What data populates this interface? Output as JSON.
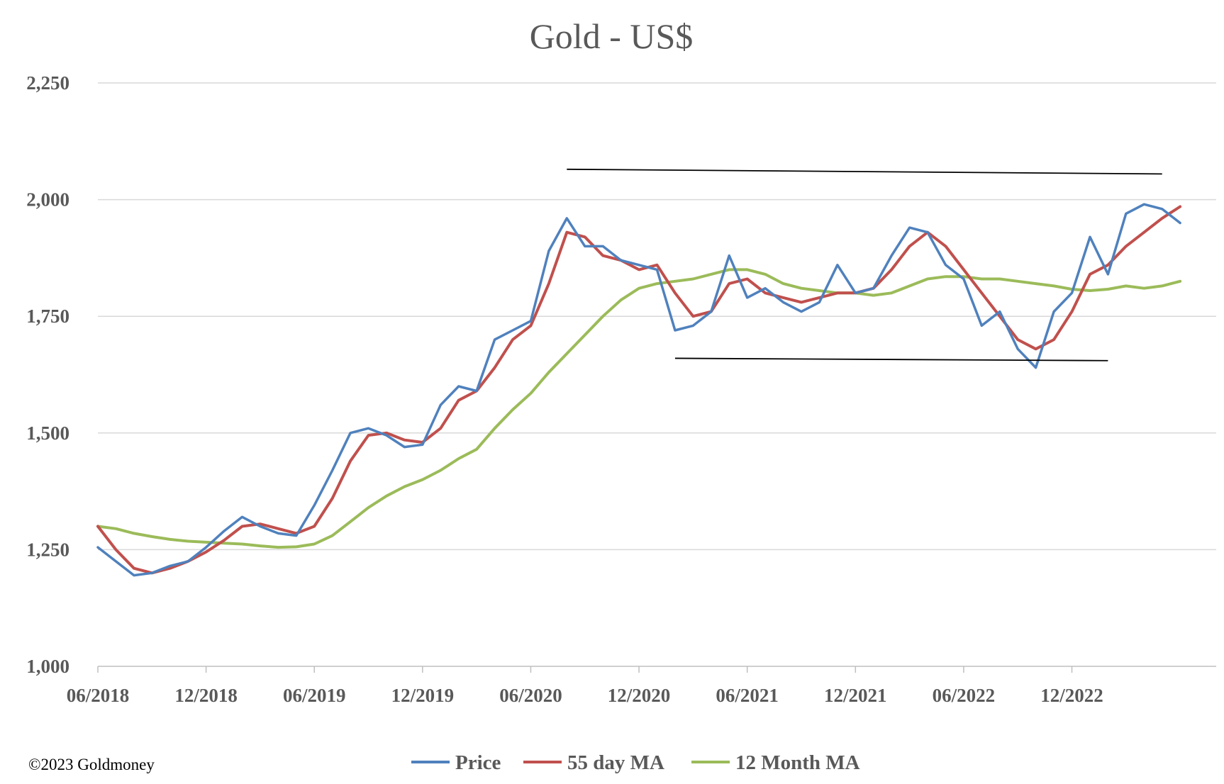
{
  "chart_data": {
    "type": "line",
    "title": "Gold - US$",
    "xlabel": "",
    "ylabel": "",
    "ylim": [
      1000,
      2250
    ],
    "yticks": [
      1000,
      1250,
      1500,
      1750,
      2000,
      2250
    ],
    "ytick_labels": [
      "1,000",
      "1,250",
      "1,500",
      "1,750",
      "2,000",
      "2,250"
    ],
    "xlim": [
      "2018-06",
      "2023-06"
    ],
    "xticks": [
      "2018-06",
      "2018-12",
      "2019-06",
      "2019-12",
      "2020-06",
      "2020-12",
      "2021-06",
      "2021-12",
      "2022-06",
      "2022-12"
    ],
    "xtick_labels": [
      "06/2018",
      "12/2018",
      "06/2019",
      "12/2019",
      "06/2020",
      "12/2020",
      "06/2021",
      "12/2021",
      "06/2022",
      "12/2022"
    ],
    "grid": true,
    "legend": "bottom",
    "series": [
      {
        "name": "Price",
        "color": "#4f81bd",
        "x": [
          "2018-06",
          "2018-07",
          "2018-08",
          "2018-09",
          "2018-10",
          "2018-11",
          "2018-12",
          "2019-01",
          "2019-02",
          "2019-03",
          "2019-04",
          "2019-05",
          "2019-06",
          "2019-07",
          "2019-08",
          "2019-09",
          "2019-10",
          "2019-11",
          "2019-12",
          "2020-01",
          "2020-02",
          "2020-03",
          "2020-04",
          "2020-05",
          "2020-06",
          "2020-07",
          "2020-08",
          "2020-09",
          "2020-10",
          "2020-11",
          "2020-12",
          "2021-01",
          "2021-02",
          "2021-03",
          "2021-04",
          "2021-05",
          "2021-06",
          "2021-07",
          "2021-08",
          "2021-09",
          "2021-10",
          "2021-11",
          "2021-12",
          "2022-01",
          "2022-02",
          "2022-03",
          "2022-04",
          "2022-05",
          "2022-06",
          "2022-07",
          "2022-08",
          "2022-09",
          "2022-10",
          "2022-11",
          "2022-12",
          "2023-01",
          "2023-02",
          "2023-03",
          "2023-04",
          "2023-05",
          "2023-06"
        ],
        "values": [
          1255,
          1225,
          1195,
          1200,
          1215,
          1225,
          1255,
          1290,
          1320,
          1300,
          1285,
          1280,
          1345,
          1420,
          1500,
          1510,
          1495,
          1470,
          1475,
          1560,
          1600,
          1590,
          1700,
          1720,
          1740,
          1890,
          1960,
          1900,
          1900,
          1870,
          1860,
          1850,
          1720,
          1730,
          1760,
          1880,
          1790,
          1810,
          1780,
          1760,
          1780,
          1860,
          1800,
          1810,
          1880,
          1940,
          1930,
          1860,
          1830,
          1730,
          1760,
          1680,
          1640,
          1760,
          1800,
          1920,
          1840,
          1970,
          1990,
          1980,
          1950
        ]
      },
      {
        "name": "55 day MA",
        "color": "#c0504d",
        "x": [
          "2018-06",
          "2018-07",
          "2018-08",
          "2018-09",
          "2018-10",
          "2018-11",
          "2018-12",
          "2019-01",
          "2019-02",
          "2019-03",
          "2019-04",
          "2019-05",
          "2019-06",
          "2019-07",
          "2019-08",
          "2019-09",
          "2019-10",
          "2019-11",
          "2019-12",
          "2020-01",
          "2020-02",
          "2020-03",
          "2020-04",
          "2020-05",
          "2020-06",
          "2020-07",
          "2020-08",
          "2020-09",
          "2020-10",
          "2020-11",
          "2020-12",
          "2021-01",
          "2021-02",
          "2021-03",
          "2021-04",
          "2021-05",
          "2021-06",
          "2021-07",
          "2021-08",
          "2021-09",
          "2021-10",
          "2021-11",
          "2021-12",
          "2022-01",
          "2022-02",
          "2022-03",
          "2022-04",
          "2022-05",
          "2022-06",
          "2022-07",
          "2022-08",
          "2022-09",
          "2022-10",
          "2022-11",
          "2022-12",
          "2023-01",
          "2023-02",
          "2023-03",
          "2023-04",
          "2023-05",
          "2023-06"
        ],
        "values": [
          1300,
          1250,
          1210,
          1200,
          1210,
          1225,
          1245,
          1270,
          1300,
          1305,
          1295,
          1285,
          1300,
          1360,
          1440,
          1495,
          1500,
          1485,
          1480,
          1510,
          1570,
          1590,
          1640,
          1700,
          1730,
          1820,
          1930,
          1920,
          1880,
          1870,
          1850,
          1860,
          1800,
          1750,
          1760,
          1820,
          1830,
          1800,
          1790,
          1780,
          1790,
          1800,
          1800,
          1810,
          1850,
          1900,
          1930,
          1900,
          1850,
          1800,
          1750,
          1700,
          1680,
          1700,
          1760,
          1840,
          1860,
          1900,
          1930,
          1960,
          1985
        ]
      },
      {
        "name": "12 Month MA",
        "color": "#9bbb59",
        "x": [
          "2018-06",
          "2018-07",
          "2018-08",
          "2018-09",
          "2018-10",
          "2018-11",
          "2018-12",
          "2019-01",
          "2019-02",
          "2019-03",
          "2019-04",
          "2019-05",
          "2019-06",
          "2019-07",
          "2019-08",
          "2019-09",
          "2019-10",
          "2019-11",
          "2019-12",
          "2020-01",
          "2020-02",
          "2020-03",
          "2020-04",
          "2020-05",
          "2020-06",
          "2020-07",
          "2020-08",
          "2020-09",
          "2020-10",
          "2020-11",
          "2020-12",
          "2021-01",
          "2021-02",
          "2021-03",
          "2021-04",
          "2021-05",
          "2021-06",
          "2021-07",
          "2021-08",
          "2021-09",
          "2021-10",
          "2021-11",
          "2021-12",
          "2022-01",
          "2022-02",
          "2022-03",
          "2022-04",
          "2022-05",
          "2022-06",
          "2022-07",
          "2022-08",
          "2022-09",
          "2022-10",
          "2022-11",
          "2022-12",
          "2023-01",
          "2023-02",
          "2023-03",
          "2023-04",
          "2023-05",
          "2023-06"
        ],
        "values": [
          1300,
          1295,
          1285,
          1278,
          1272,
          1268,
          1266,
          1264,
          1262,
          1258,
          1255,
          1256,
          1262,
          1280,
          1310,
          1340,
          1365,
          1385,
          1400,
          1420,
          1445,
          1465,
          1510,
          1550,
          1585,
          1630,
          1670,
          1710,
          1750,
          1785,
          1810,
          1820,
          1825,
          1830,
          1840,
          1850,
          1850,
          1840,
          1820,
          1810,
          1805,
          1800,
          1800,
          1795,
          1800,
          1815,
          1830,
          1835,
          1835,
          1830,
          1830,
          1825,
          1820,
          1815,
          1808,
          1805,
          1808,
          1815,
          1810,
          1815,
          1825
        ]
      }
    ],
    "annotations": [
      {
        "type": "trendline",
        "x": [
          "2020-08",
          "2023-05"
        ],
        "y": [
          2065,
          2055
        ]
      },
      {
        "type": "trendline",
        "x": [
          "2021-02",
          "2023-02"
        ],
        "y": [
          1660,
          1655
        ]
      }
    ]
  },
  "footer": {
    "copyright": "©2023 Goldmoney"
  }
}
